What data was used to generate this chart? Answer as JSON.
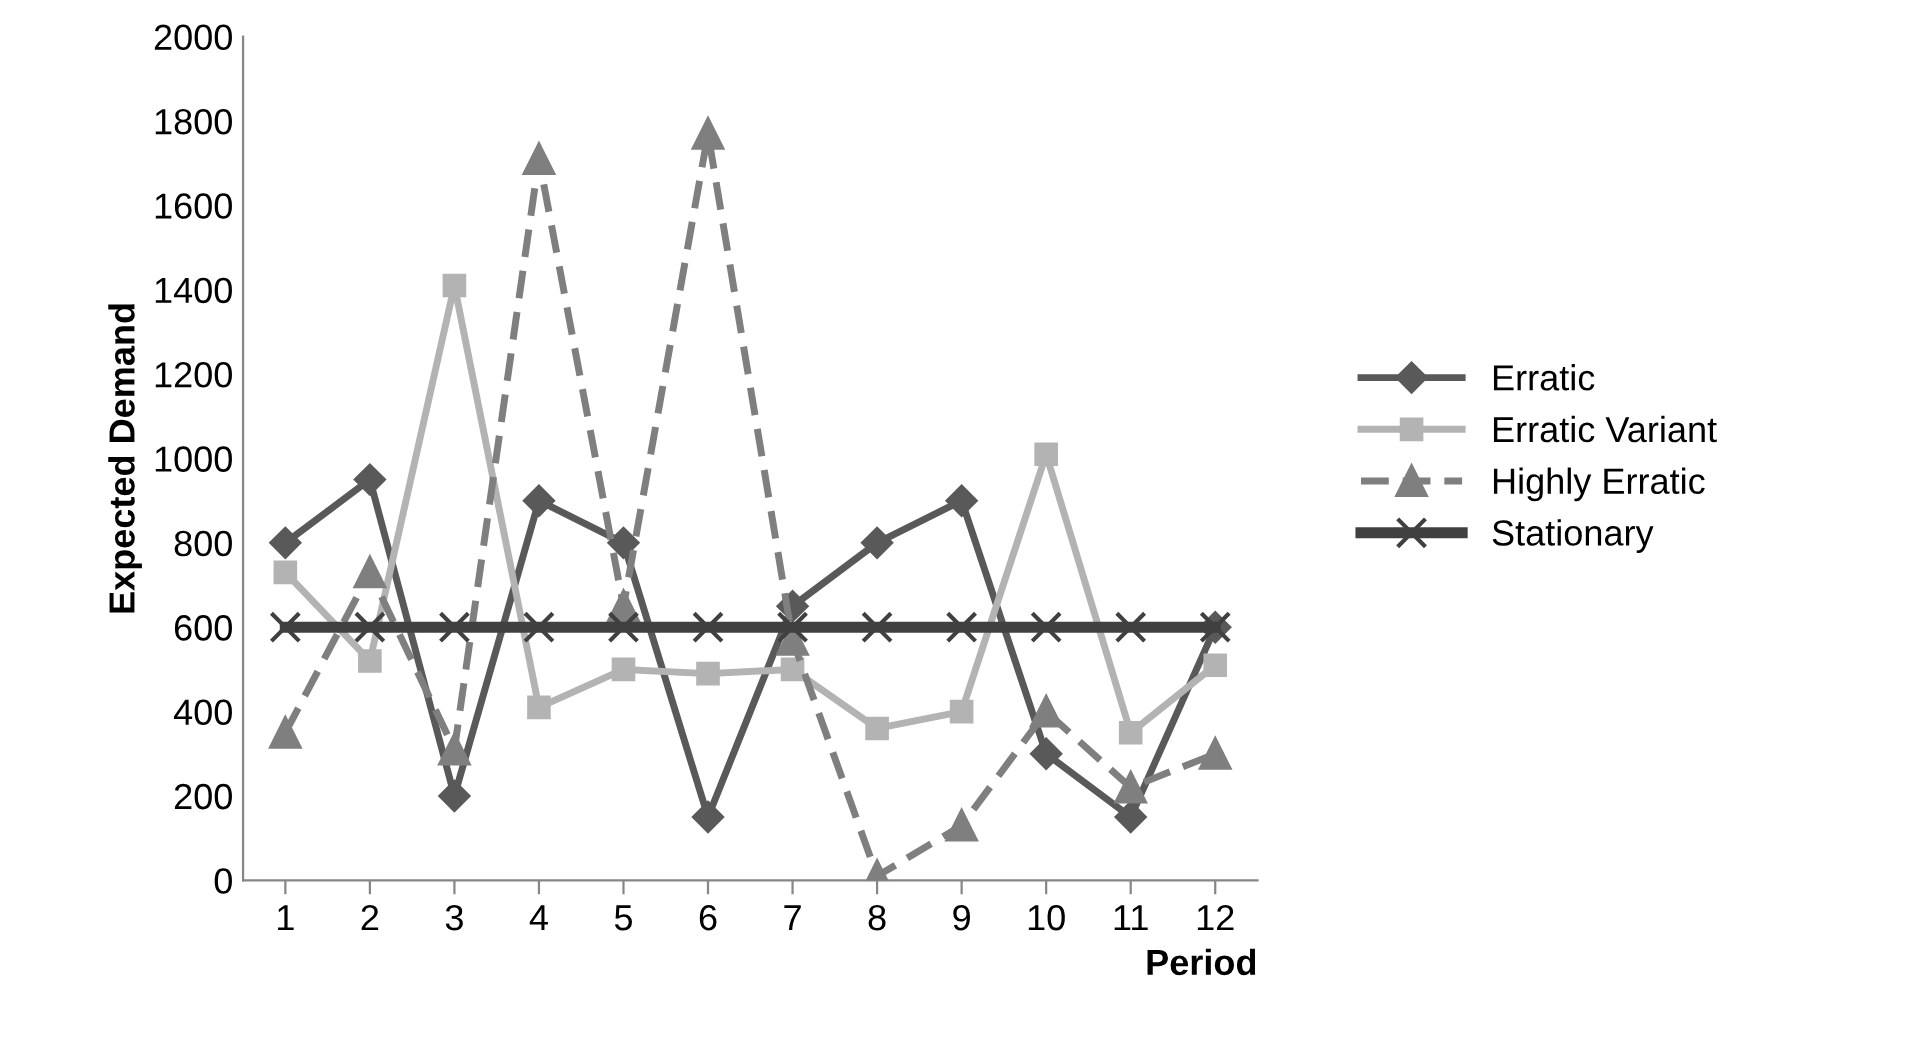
{
  "chart_data": {
    "type": "line",
    "xlabel": "Period",
    "ylabel": "Expected Demand",
    "categories": [
      "1",
      "2",
      "3",
      "4",
      "5",
      "6",
      "7",
      "8",
      "9",
      "10",
      "11",
      "12"
    ],
    "series": [
      {
        "name": "Erratic",
        "color": "#595959",
        "marker": "diamond",
        "line_style": "solid",
        "values": [
          800,
          950,
          200,
          900,
          800,
          150,
          650,
          800,
          900,
          300,
          150,
          600
        ]
      },
      {
        "name": "Erratic Variant",
        "color": "#b3b3b3",
        "marker": "square",
        "line_style": "solid",
        "values": [
          730,
          520,
          1410,
          410,
          500,
          490,
          500,
          360,
          400,
          1010,
          350,
          510
        ]
      },
      {
        "name": "Highly Erratic",
        "color": "#7f7f7f",
        "marker": "triangle",
        "line_style": "dashed",
        "values": [
          350,
          730,
          310,
          1710,
          650,
          1770,
          570,
          10,
          130,
          400,
          220,
          300
        ]
      },
      {
        "name": "Stationary",
        "color": "#404040",
        "marker": "cross",
        "line_style": "solid",
        "values": [
          600,
          600,
          600,
          600,
          600,
          600,
          600,
          600,
          600,
          600,
          600,
          600
        ]
      }
    ],
    "ylim": [
      0,
      2000
    ],
    "yticks": [
      0,
      200,
      400,
      600,
      800,
      1000,
      1200,
      1400,
      1600,
      1800,
      2000
    ],
    "grid": false,
    "legend": "right"
  }
}
